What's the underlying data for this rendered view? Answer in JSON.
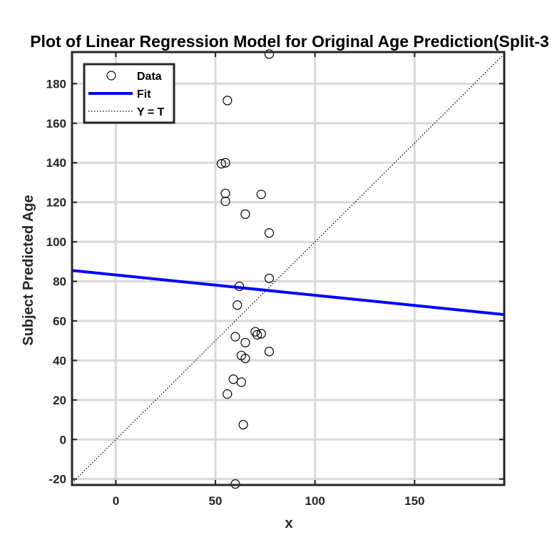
{
  "chart_data": {
    "type": "scatter",
    "title": "Plot of Linear Regression Model for Original Age Prediction(Split-3",
    "xlabel": "x",
    "ylabel": "Subject Predicted Age",
    "xlim": [
      -22,
      195
    ],
    "ylim": [
      -23,
      196
    ],
    "xticks": [
      0,
      50,
      100,
      150
    ],
    "yticks": [
      -20,
      0,
      20,
      40,
      60,
      80,
      100,
      120,
      140,
      160,
      180
    ],
    "grid": true,
    "legend_position": "top-left",
    "legend": [
      "Data",
      "Fit",
      "Y = T"
    ],
    "series": [
      {
        "name": "Data",
        "marker": "open-circle",
        "color": "#000000",
        "points": [
          [
            77,
            195
          ],
          [
            56,
            171.5
          ],
          [
            53,
            139.5
          ],
          [
            55,
            140
          ],
          [
            55,
            124.5
          ],
          [
            73,
            124
          ],
          [
            55,
            120.5
          ],
          [
            65,
            114
          ],
          [
            77,
            104.5
          ],
          [
            77,
            81.5
          ],
          [
            62,
            77.5
          ],
          [
            61,
            68
          ],
          [
            70,
            54.5
          ],
          [
            71,
            53
          ],
          [
            73,
            53.5
          ],
          [
            60,
            52
          ],
          [
            65,
            49
          ],
          [
            77,
            44.5
          ],
          [
            63,
            42.5
          ],
          [
            65,
            41
          ],
          [
            59,
            30.5
          ],
          [
            63,
            29
          ],
          [
            56,
            23
          ],
          [
            64,
            7.5
          ],
          [
            60,
            -22.5
          ]
        ]
      },
      {
        "name": "Fit",
        "type": "line",
        "color": "#0000ff",
        "x": [
          -22,
          195
        ],
        "y": [
          85.5,
          63.2
        ]
      },
      {
        "name": "Y = T",
        "type": "line",
        "style": "dotted",
        "color": "#000000",
        "x": [
          -22,
          195
        ],
        "y": [
          -22,
          195
        ]
      }
    ]
  }
}
